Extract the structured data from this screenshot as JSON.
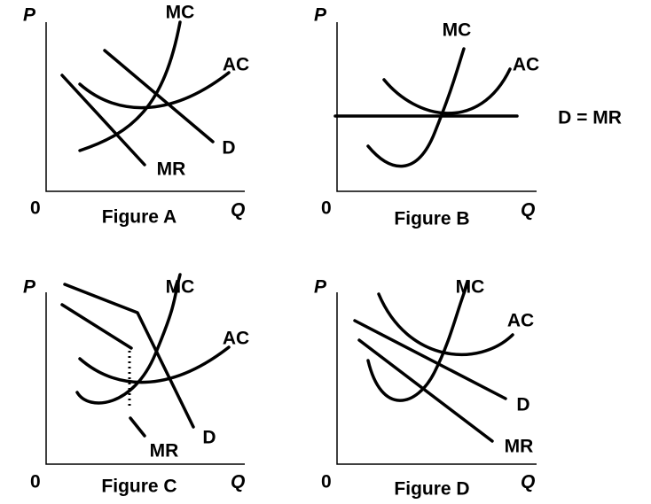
{
  "figures": [
    {
      "y_axis": "P",
      "origin": "0",
      "x_axis": "Q",
      "caption": "Figure A",
      "labels": [
        "MC",
        "AC",
        "D",
        "MR"
      ]
    },
    {
      "y_axis": "P",
      "origin": "0",
      "x_axis": "Q",
      "caption": "Figure B",
      "labels": [
        "MC",
        "AC",
        "D = MR"
      ]
    },
    {
      "y_axis": "P",
      "origin": "0",
      "x_axis": "Q",
      "caption": "Figure C",
      "labels": [
        "MC",
        "AC",
        "D",
        "MR"
      ]
    },
    {
      "y_axis": "P",
      "origin": "0",
      "x_axis": "Q",
      "caption": "Figure D",
      "labels": [
        "MC",
        "AC",
        "D",
        "MR"
      ]
    }
  ]
}
